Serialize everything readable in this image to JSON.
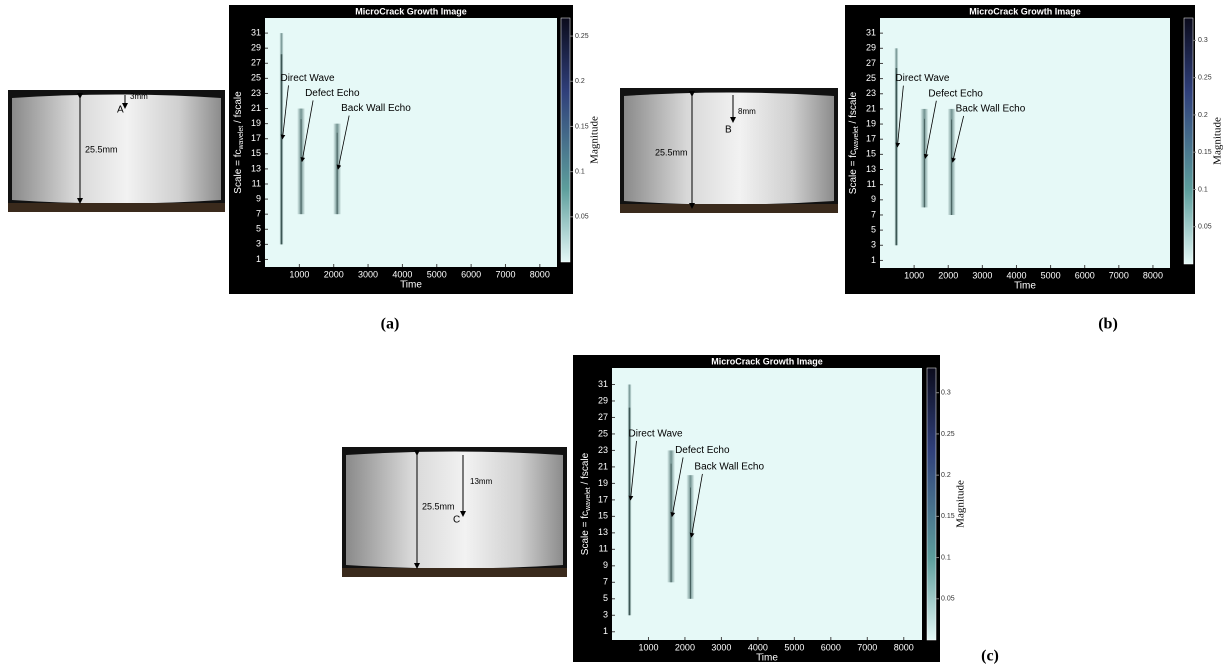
{
  "chart_data": [
    {
      "type": "scalogram",
      "title": "MicroCrack Growth Image",
      "xlabel": "Time",
      "ylabel": {
        "main": "Scale = fc",
        "sub": "wavelet",
        "rest": " / fscale"
      },
      "xlim": [
        0,
        8500
      ],
      "xticks": [
        1000,
        2000,
        3000,
        4000,
        5000,
        6000,
        7000,
        8000
      ],
      "ylim": [
        0,
        33
      ],
      "yticks": [
        1,
        3,
        5,
        7,
        9,
        11,
        13,
        15,
        17,
        19,
        21,
        23,
        25,
        27,
        29,
        31
      ],
      "colorbar": {
        "label": "Magnitude",
        "lim": [
          0,
          0.27
        ],
        "ticks": [
          0.05,
          0.1,
          0.15,
          0.2,
          0.25
        ]
      },
      "echoes": [
        {
          "name": "Direct Wave",
          "x": 480,
          "y": [
            3,
            31
          ]
        },
        {
          "name": "Defect Echo",
          "x": 1050,
          "y": [
            7,
            21
          ]
        },
        {
          "name": "Back Wall Echo",
          "x": 2100,
          "y": [
            7,
            19
          ]
        }
      ],
      "specimen": {
        "point": "A",
        "depth": "3mm",
        "thickness": "25.5mm"
      },
      "panel_label": "(a)"
    },
    {
      "type": "scalogram",
      "title": "MicroCrack Growth Image",
      "xlabel": "Time",
      "ylabel": {
        "main": "Scale = fc",
        "sub": "wavelet",
        "rest": " / fscale"
      },
      "xlim": [
        0,
        8500
      ],
      "xticks": [
        1000,
        2000,
        3000,
        4000,
        5000,
        6000,
        7000,
        8000
      ],
      "ylim": [
        0,
        33
      ],
      "yticks": [
        1,
        3,
        5,
        7,
        9,
        11,
        13,
        15,
        17,
        19,
        21,
        23,
        25,
        27,
        29,
        31
      ],
      "colorbar": {
        "label": "Magnitude",
        "lim": [
          0,
          0.33
        ],
        "ticks": [
          0.05,
          0.1,
          0.15,
          0.2,
          0.25,
          0.3
        ]
      },
      "echoes": [
        {
          "name": "Direct Wave",
          "x": 480,
          "y": [
            3,
            29
          ]
        },
        {
          "name": "Defect Echo",
          "x": 1300,
          "y": [
            8,
            21
          ]
        },
        {
          "name": "Back Wall Echo",
          "x": 2100,
          "y": [
            7,
            21
          ]
        }
      ],
      "specimen": {
        "point": "B",
        "depth": "8mm",
        "thickness": "25.5mm"
      },
      "panel_label": "(b)"
    },
    {
      "type": "scalogram",
      "title": "MicroCrack Growth Image",
      "xlabel": "Time",
      "ylabel": {
        "main": "Scale = fc",
        "sub": "wavelet",
        "rest": " / fscale"
      },
      "xlim": [
        0,
        8500
      ],
      "xticks": [
        1000,
        2000,
        3000,
        4000,
        5000,
        6000,
        7000,
        8000
      ],
      "ylim": [
        0,
        33
      ],
      "yticks": [
        1,
        3,
        5,
        7,
        9,
        11,
        13,
        15,
        17,
        19,
        21,
        23,
        25,
        27,
        29,
        31
      ],
      "colorbar": {
        "label": "Magnitude",
        "lim": [
          0,
          0.33
        ],
        "ticks": [
          0.05,
          0.1,
          0.15,
          0.2,
          0.25,
          0.3
        ]
      },
      "echoes": [
        {
          "name": "Direct Wave",
          "x": 480,
          "y": [
            3,
            31
          ]
        },
        {
          "name": "Defect Echo",
          "x": 1620,
          "y": [
            7,
            23
          ]
        },
        {
          "name": "Back Wall Echo",
          "x": 2150,
          "y": [
            5,
            20
          ]
        }
      ],
      "specimen": {
        "point": "C",
        "depth": "13mm",
        "thickness": "25.5mm"
      },
      "panel_label": "(c)"
    }
  ]
}
